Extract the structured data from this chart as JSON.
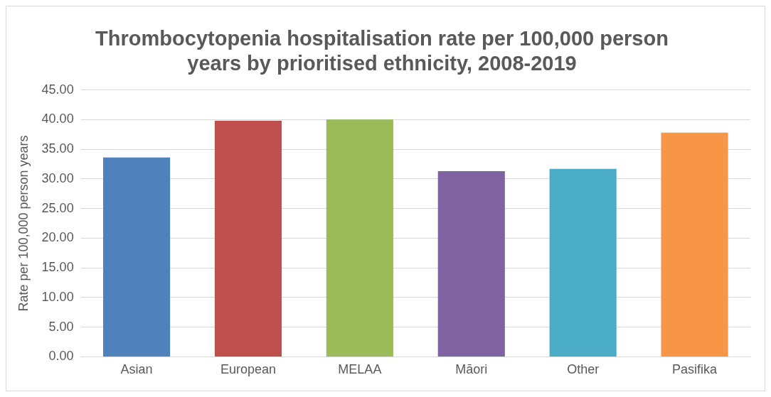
{
  "chart_data": {
    "type": "bar",
    "title": "Thrombocytopenia hospitalisation rate per 100,000 person years by prioritised ethnicity, 2008-2019",
    "ylabel": "Rate per 100,000 person years",
    "categories": [
      "Asian",
      "European",
      "MELAA",
      "Māori",
      "Other",
      "Pasifika"
    ],
    "values": [
      33.6,
      39.8,
      40.0,
      31.3,
      31.7,
      37.8
    ],
    "colors": [
      "#4f81bd",
      "#c0504d",
      "#9bbb59",
      "#8064a2",
      "#4bacc6",
      "#f79646"
    ],
    "ylim": [
      0,
      45
    ],
    "yticks": [
      {
        "value": 0,
        "label": "0.00"
      },
      {
        "value": 5,
        "label": "5.00"
      },
      {
        "value": 10,
        "label": "10.00"
      },
      {
        "value": 15,
        "label": "15.00"
      },
      {
        "value": 20,
        "label": "20.00"
      },
      {
        "value": 25,
        "label": "25.00"
      },
      {
        "value": 30,
        "label": "30.00"
      },
      {
        "value": 35,
        "label": "35.00"
      },
      {
        "value": 40,
        "label": "40.00"
      },
      {
        "value": 45,
        "label": "45.00"
      }
    ],
    "grid": "y",
    "legend": false
  }
}
